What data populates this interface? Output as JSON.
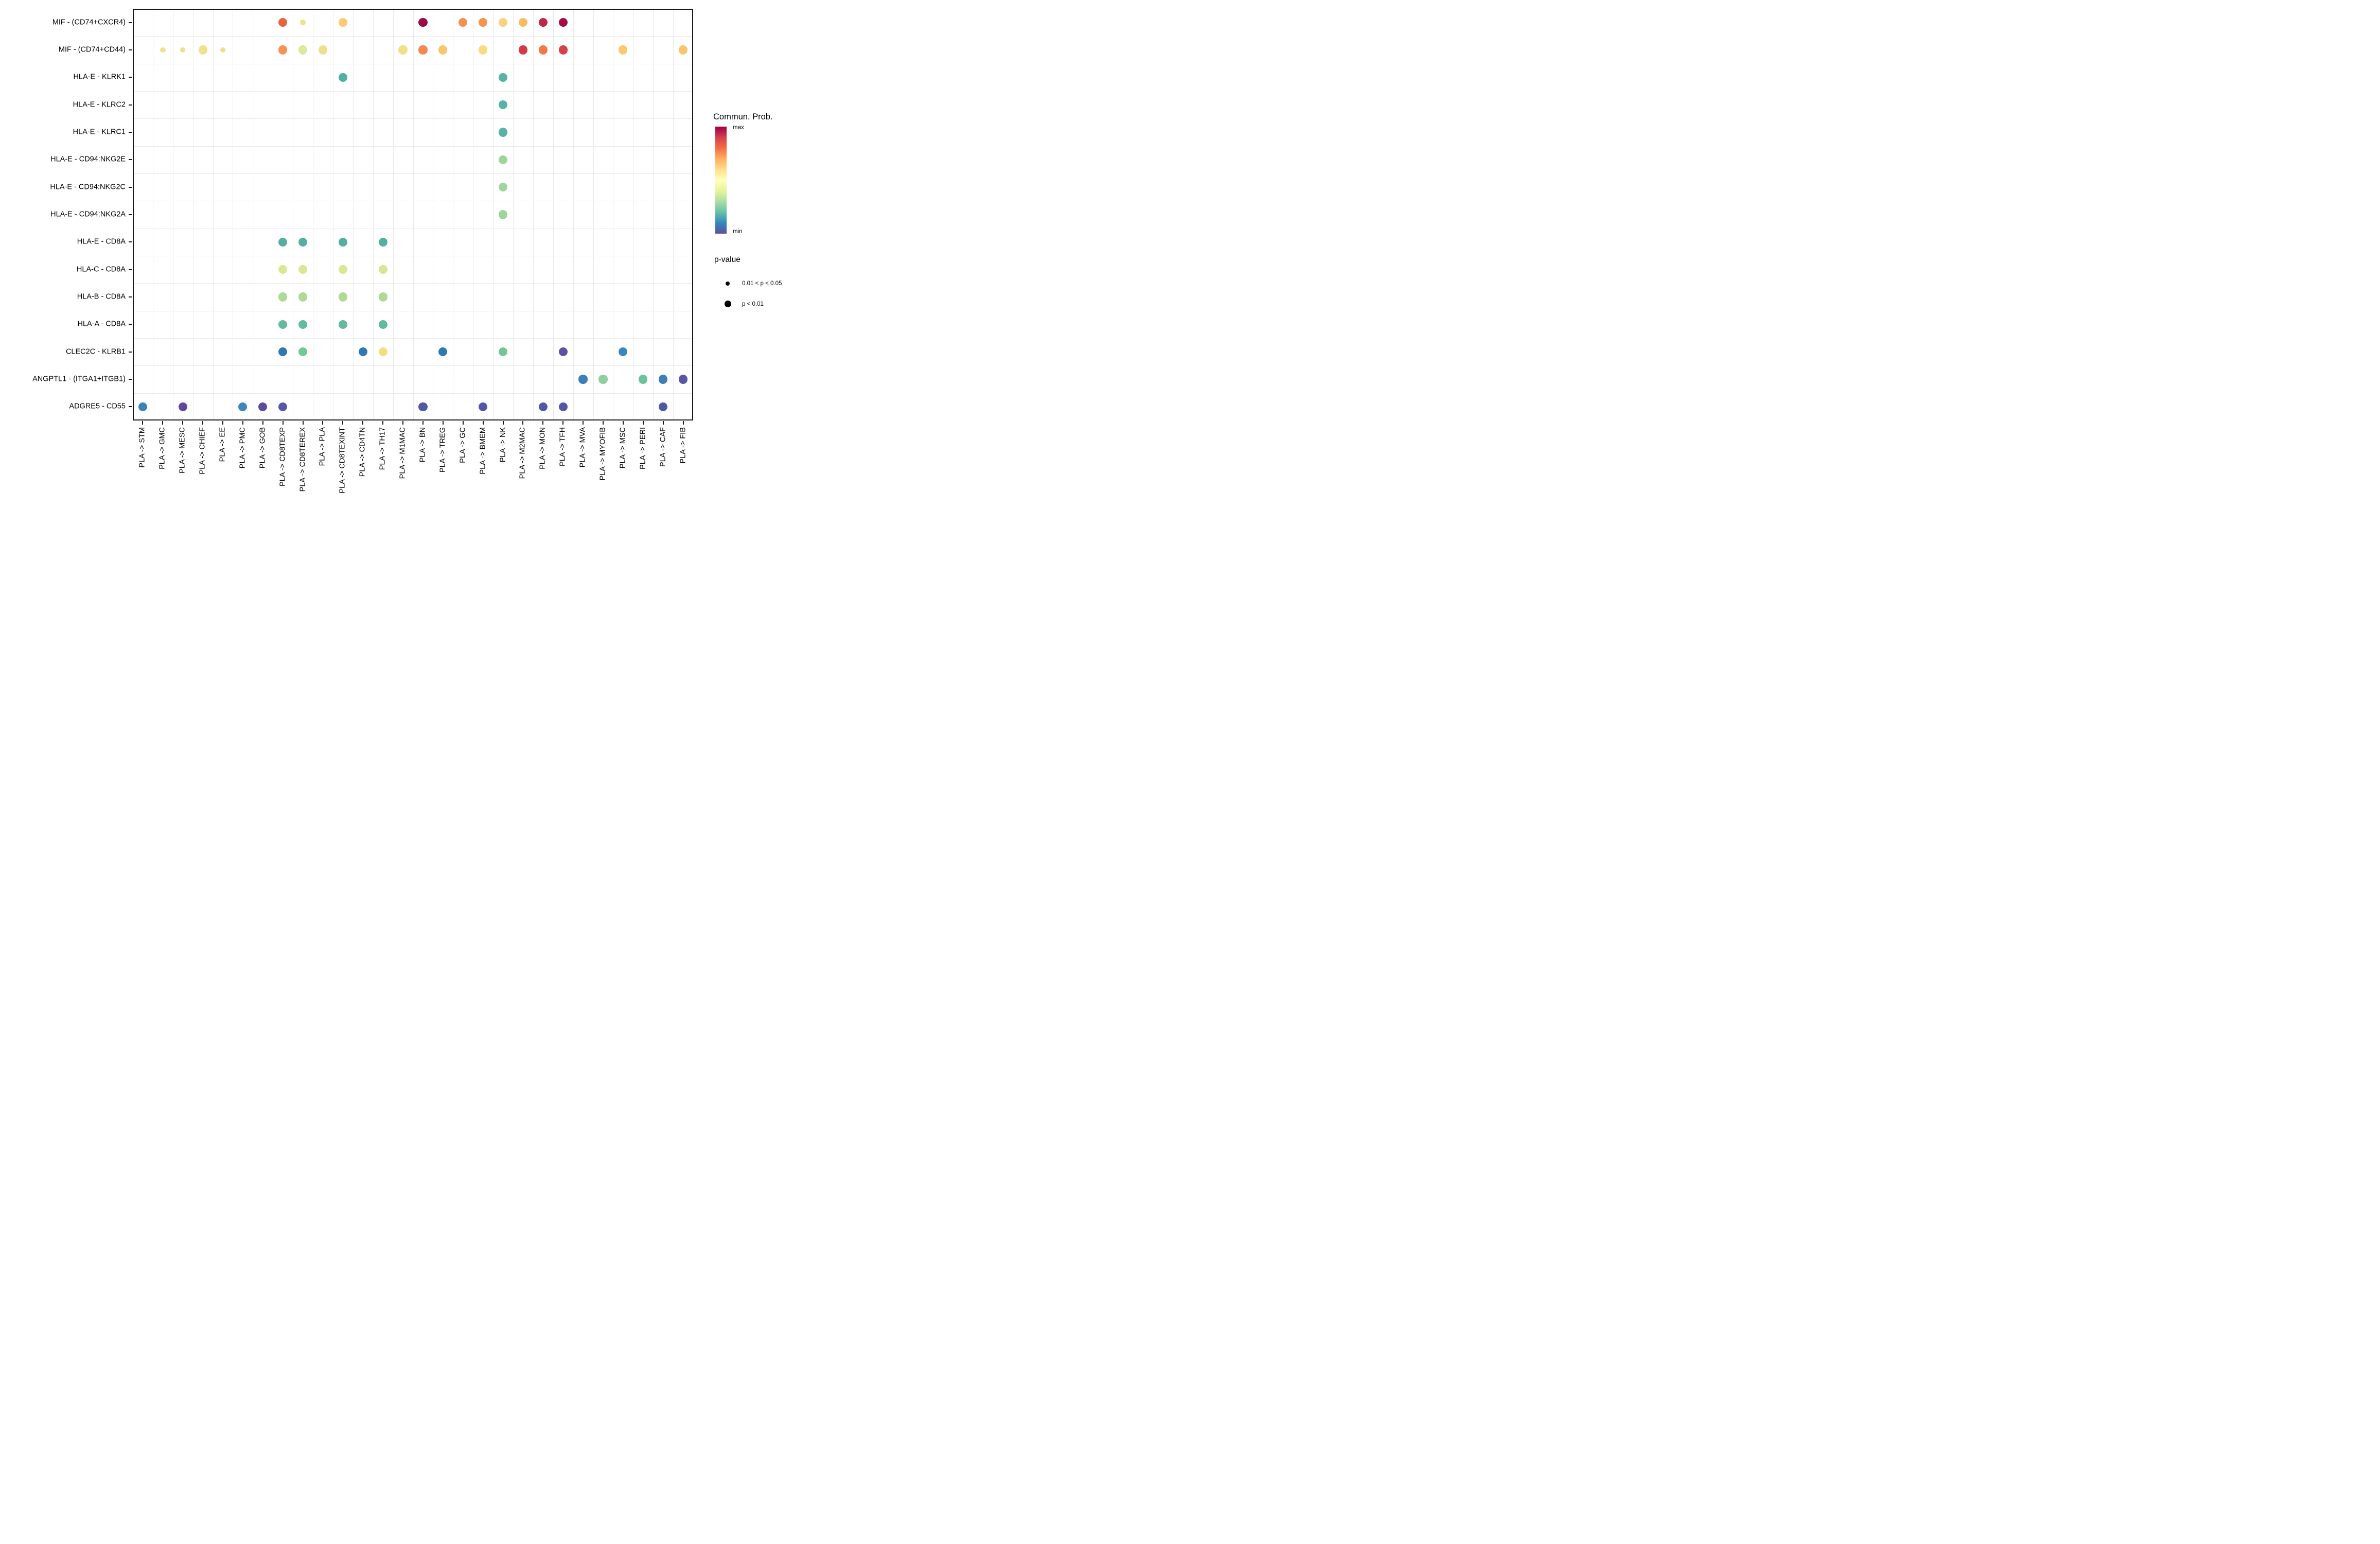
{
  "figure": {
    "background": "#FFFFFF",
    "grid_color": "#E9E9E9",
    "border_color": "#1A1A1A",
    "text_color": "#000000"
  },
  "chart_data": {
    "type": "scatter",
    "title": "",
    "xlabel": "",
    "ylabel": "",
    "grid": "minor gridlines at category boundaries",
    "x_categories": [
      "PLA -> STM",
      "PLA -> GMC",
      "PLA -> MESC",
      "PLA -> CHIEF",
      "PLA -> EE",
      "PLA -> PMC",
      "PLA -> GOB",
      "PLA -> CD8TEXP",
      "PLA -> CD8TEREX",
      "PLA -> PLA",
      "PLA -> CD8TEXINT",
      "PLA -> CD4TN",
      "PLA -> TH17",
      "PLA -> M1MAC",
      "PLA -> BN",
      "PLA -> TREG",
      "PLA -> GC",
      "PLA -> BMEM",
      "PLA -> NK",
      "PLA -> M2MAC",
      "PLA -> MON",
      "PLA -> TFH",
      "PLA -> MVA",
      "PLA -> MYOFIB",
      "PLA -> MSC",
      "PLA -> PERI",
      "PLA -> CAF",
      "PLA -> FIB"
    ],
    "y_categories": [
      "MIF - (CD74+CXCR4)",
      "MIF - (CD74+CD44)",
      "HLA-E - KLRK1",
      "HLA-E - KLRC2",
      "HLA-E - KLRC1",
      "HLA-E - CD94:NKG2E",
      "HLA-E - CD94:NKG2C",
      "HLA-E - CD94:NKG2A",
      "HLA-E - CD8A",
      "HLA-C - CD8A",
      "HLA-B - CD8A",
      "HLA-A - CD8A",
      "CLEC2C - KLRB1",
      "ANGPTL1 - (ITGA1+ITGB1)",
      "ADGRE5 - CD55"
    ],
    "size_encoding": {
      "small": "0.01 < p < 0.05",
      "large": "p < 0.01"
    },
    "points": [
      {
        "x": "PLA -> CD8TEXP",
        "y": "MIF - (CD74+CXCR4)",
        "color": "#E8623E",
        "p": "large"
      },
      {
        "x": "PLA -> CD8TEREX",
        "y": "MIF - (CD74+CXCR4)",
        "color": "#EDE38A",
        "p": "small"
      },
      {
        "x": "PLA -> CD8TEXINT",
        "y": "MIF - (CD74+CXCR4)",
        "color": "#FACB74",
        "p": "large"
      },
      {
        "x": "PLA -> BN",
        "y": "MIF - (CD74+CXCR4)",
        "color": "#9C0B45",
        "p": "large"
      },
      {
        "x": "PLA -> GC",
        "y": "MIF - (CD74+CXCR4)",
        "color": "#F4914D",
        "p": "large"
      },
      {
        "x": "PLA -> BMEM",
        "y": "MIF - (CD74+CXCR4)",
        "color": "#F5944F",
        "p": "large"
      },
      {
        "x": "PLA -> NK",
        "y": "MIF - (CD74+CXCR4)",
        "color": "#FAD27E",
        "p": "large"
      },
      {
        "x": "PLA -> M2MAC",
        "y": "MIF - (CD74+CXCR4)",
        "color": "#F8BC63",
        "p": "large"
      },
      {
        "x": "PLA -> MON",
        "y": "MIF - (CD74+CXCR4)",
        "color": "#BE2849",
        "p": "large"
      },
      {
        "x": "PLA -> TFH",
        "y": "MIF - (CD74+CXCR4)",
        "color": "#A30C45",
        "p": "large"
      },
      {
        "x": "PLA -> GMC",
        "y": "MIF - (CD74+CD44)",
        "color": "#EDE28A",
        "p": "small"
      },
      {
        "x": "PLA -> MESC",
        "y": "MIF - (CD74+CD44)",
        "color": "#EDE28A",
        "p": "small"
      },
      {
        "x": "PLA -> CHIEF",
        "y": "MIF - (CD74+CD44)",
        "color": "#EFE28E",
        "p": "large"
      },
      {
        "x": "PLA -> EE",
        "y": "MIF - (CD74+CD44)",
        "color": "#EDE28A",
        "p": "small"
      },
      {
        "x": "PLA -> CD8TEXP",
        "y": "MIF - (CD74+CD44)",
        "color": "#F59254",
        "p": "large"
      },
      {
        "x": "PLA -> CD8TEREX",
        "y": "MIF - (CD74+CD44)",
        "color": "#DCE89C",
        "p": "large"
      },
      {
        "x": "PLA -> PLA",
        "y": "MIF - (CD74+CD44)",
        "color": "#EDE08C",
        "p": "large"
      },
      {
        "x": "PLA -> M1MAC",
        "y": "MIF - (CD74+CD44)",
        "color": "#F0E189",
        "p": "large"
      },
      {
        "x": "PLA -> BN",
        "y": "MIF - (CD74+CD44)",
        "color": "#F18A4C",
        "p": "large"
      },
      {
        "x": "PLA -> TREG",
        "y": "MIF - (CD74+CD44)",
        "color": "#FBC56B",
        "p": "large"
      },
      {
        "x": "PLA -> BMEM",
        "y": "MIF - (CD74+CD44)",
        "color": "#FAD981",
        "p": "large"
      },
      {
        "x": "PLA -> M2MAC",
        "y": "MIF - (CD74+CD44)",
        "color": "#D23B45",
        "p": "large"
      },
      {
        "x": "PLA -> MON",
        "y": "MIF - (CD74+CD44)",
        "color": "#F2784A",
        "p": "large"
      },
      {
        "x": "PLA -> TFH",
        "y": "MIF - (CD74+CD44)",
        "color": "#D44245",
        "p": "large"
      },
      {
        "x": "PLA -> MSC",
        "y": "MIF - (CD74+CD44)",
        "color": "#FBC76F",
        "p": "large"
      },
      {
        "x": "PLA -> FIB",
        "y": "MIF - (CD74+CD44)",
        "color": "#FBC56D",
        "p": "large"
      },
      {
        "x": "PLA -> CD8TEXINT",
        "y": "HLA-E - KLRK1",
        "color": "#53AEA4",
        "p": "large"
      },
      {
        "x": "PLA -> NK",
        "y": "HLA-E - KLRK1",
        "color": "#58B2A6",
        "p": "large"
      },
      {
        "x": "PLA -> NK",
        "y": "HLA-E - KLRC2",
        "color": "#58B2A6",
        "p": "large"
      },
      {
        "x": "PLA -> NK",
        "y": "HLA-E - KLRC1",
        "color": "#58B2A6",
        "p": "large"
      },
      {
        "x": "PLA -> NK",
        "y": "HLA-E - CD94:NKG2E",
        "color": "#A0D49F",
        "p": "large"
      },
      {
        "x": "PLA -> NK",
        "y": "HLA-E - CD94:NKG2C",
        "color": "#A0D49F",
        "p": "large"
      },
      {
        "x": "PLA -> NK",
        "y": "HLA-E - CD94:NKG2A",
        "color": "#A0D49F",
        "p": "large"
      },
      {
        "x": "PLA -> CD8TEXP",
        "y": "HLA-E - CD8A",
        "color": "#54AEA1",
        "p": "large"
      },
      {
        "x": "PLA -> CD8TEREX",
        "y": "HLA-E - CD8A",
        "color": "#54AEA1",
        "p": "large"
      },
      {
        "x": "PLA -> CD8TEXINT",
        "y": "HLA-E - CD8A",
        "color": "#54AEA1",
        "p": "large"
      },
      {
        "x": "PLA -> TH17",
        "y": "HLA-E - CD8A",
        "color": "#54AEA1",
        "p": "large"
      },
      {
        "x": "PLA -> CD8TEXP",
        "y": "HLA-C - CD8A",
        "color": "#D6E893",
        "p": "large"
      },
      {
        "x": "PLA -> CD8TEREX",
        "y": "HLA-C - CD8A",
        "color": "#D6E893",
        "p": "large"
      },
      {
        "x": "PLA -> CD8TEXINT",
        "y": "HLA-C - CD8A",
        "color": "#D6E893",
        "p": "large"
      },
      {
        "x": "PLA -> TH17",
        "y": "HLA-C - CD8A",
        "color": "#D6E893",
        "p": "large"
      },
      {
        "x": "PLA -> CD8TEXP",
        "y": "HLA-B - CD8A",
        "color": "#AEDA95",
        "p": "large"
      },
      {
        "x": "PLA -> CD8TEREX",
        "y": "HLA-B - CD8A",
        "color": "#AEDA95",
        "p": "large"
      },
      {
        "x": "PLA -> CD8TEXINT",
        "y": "HLA-B - CD8A",
        "color": "#AEDA95",
        "p": "large"
      },
      {
        "x": "PLA -> TH17",
        "y": "HLA-B - CD8A",
        "color": "#AEDA95",
        "p": "large"
      },
      {
        "x": "PLA -> CD8TEXP",
        "y": "HLA-A - CD8A",
        "color": "#63BB9B",
        "p": "large"
      },
      {
        "x": "PLA -> CD8TEREX",
        "y": "HLA-A - CD8A",
        "color": "#63BB9B",
        "p": "large"
      },
      {
        "x": "PLA -> CD8TEXINT",
        "y": "HLA-A - CD8A",
        "color": "#63BB9B",
        "p": "large"
      },
      {
        "x": "PLA -> TH17",
        "y": "HLA-A - CD8A",
        "color": "#63BB9B",
        "p": "large"
      },
      {
        "x": "PLA -> CD8TEXP",
        "y": "CLEC2C - KLRB1",
        "color": "#2F78B2",
        "p": "large"
      },
      {
        "x": "PLA -> CD8TEREX",
        "y": "CLEC2C - KLRB1",
        "color": "#72C796",
        "p": "large"
      },
      {
        "x": "PLA -> CD4TN",
        "y": "CLEC2C - KLRB1",
        "color": "#2F78B2",
        "p": "large"
      },
      {
        "x": "PLA -> TH17",
        "y": "CLEC2C - KLRB1",
        "color": "#F7DC81",
        "p": "large"
      },
      {
        "x": "PLA -> TREG",
        "y": "CLEC2C - KLRB1",
        "color": "#2F78B2",
        "p": "large"
      },
      {
        "x": "PLA -> NK",
        "y": "CLEC2C - KLRB1",
        "color": "#72C796",
        "p": "large"
      },
      {
        "x": "PLA -> TFH",
        "y": "CLEC2C - KLRB1",
        "color": "#5B52A3",
        "p": "large"
      },
      {
        "x": "PLA -> MSC",
        "y": "CLEC2C - KLRB1",
        "color": "#3B86BC",
        "p": "large"
      },
      {
        "x": "PLA -> MVA",
        "y": "ANGPTL1 - (ITGA1+ITGB1)",
        "color": "#3A80B9",
        "p": "large"
      },
      {
        "x": "PLA -> MYOFIB",
        "y": "ANGPTL1 - (ITGA1+ITGB1)",
        "color": "#90CF9E",
        "p": "large"
      },
      {
        "x": "PLA -> PERI",
        "y": "ANGPTL1 - (ITGA1+ITGB1)",
        "color": "#6BC39B",
        "p": "large"
      },
      {
        "x": "PLA -> CAF",
        "y": "ANGPTL1 - (ITGA1+ITGB1)",
        "color": "#3F7DB5",
        "p": "large"
      },
      {
        "x": "PLA -> FIB",
        "y": "ANGPTL1 - (ITGA1+ITGB1)",
        "color": "#5A55A5",
        "p": "large"
      },
      {
        "x": "PLA -> STM",
        "y": "ADGRE5 - CD55",
        "color": "#3B82B9",
        "p": "large"
      },
      {
        "x": "PLA -> MESC",
        "y": "ADGRE5 - CD55",
        "color": "#6245A0",
        "p": "large"
      },
      {
        "x": "PLA -> PMC",
        "y": "ADGRE5 - CD55",
        "color": "#3F86BB",
        "p": "large"
      },
      {
        "x": "PLA -> GOB",
        "y": "ADGRE5 - CD55",
        "color": "#5C4BA0",
        "p": "large"
      },
      {
        "x": "PLA -> CD8TEXP",
        "y": "ADGRE5 - CD55",
        "color": "#5558A8",
        "p": "large"
      },
      {
        "x": "PLA -> BN",
        "y": "ADGRE5 - CD55",
        "color": "#5156A8",
        "p": "large"
      },
      {
        "x": "PLA -> BMEM",
        "y": "ADGRE5 - CD55",
        "color": "#5156A8",
        "p": "large"
      },
      {
        "x": "PLA -> MON",
        "y": "ADGRE5 - CD55",
        "color": "#5156A8",
        "p": "large"
      },
      {
        "x": "PLA -> TFH",
        "y": "ADGRE5 - CD55",
        "color": "#5156A8",
        "p": "large"
      },
      {
        "x": "PLA -> CAF",
        "y": "ADGRE5 - CD55",
        "color": "#5156A8",
        "p": "large"
      }
    ],
    "legend": {
      "colorbar": {
        "title": "Commun. Prob.",
        "max_label": "max",
        "min_label": "min",
        "gradient_top_to_bottom": [
          "#9E0142",
          "#D53E4F",
          "#F46D43",
          "#FDAE61",
          "#FEE08B",
          "#FFFFBF",
          "#E6F598",
          "#ABDDA4",
          "#66C2A5",
          "#3288BD",
          "#5E4FA2"
        ]
      },
      "size_legend": {
        "title": "p-value",
        "items": [
          {
            "label": "0.01 < p < 0.05",
            "size": "small"
          },
          {
            "label": "p < 0.01",
            "size": "large"
          }
        ]
      }
    }
  }
}
